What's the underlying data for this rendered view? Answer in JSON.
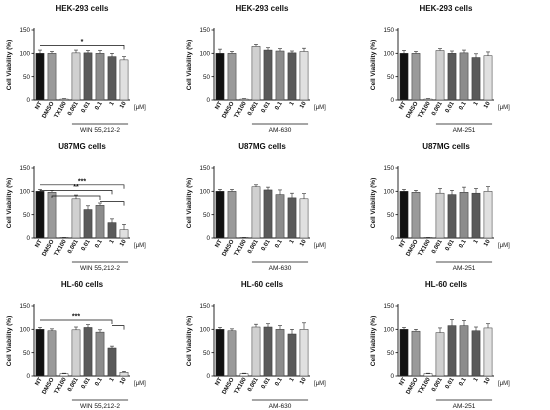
{
  "figure": {
    "unit_label": "[μM]"
  },
  "chart_data": [
    {
      "type": "bar",
      "title": "HEK-293 cells",
      "ylabel": "Cell Viability (%)",
      "ylim": [
        0,
        150
      ],
      "yticks": [
        0,
        50,
        100,
        150
      ],
      "categories": [
        "NT",
        "DMSO",
        "TX100",
        "0.001",
        "0.01",
        "0.1",
        "1",
        "10"
      ],
      "values": [
        100,
        100,
        2,
        101,
        101,
        100,
        93,
        86
      ],
      "errors": [
        7,
        4,
        1,
        6,
        5,
        6,
        7,
        7
      ],
      "treatment": "WIN 55,212-2",
      "unit": "[μM]",
      "significance": [
        {
          "from": 0,
          "to": 7,
          "label": "*"
        }
      ]
    },
    {
      "type": "bar",
      "title": "HEK-293 cells",
      "ylabel": "Cell Viability (%)",
      "ylim": [
        0,
        150
      ],
      "yticks": [
        0,
        50,
        100,
        150
      ],
      "categories": [
        "NT",
        "DMSO",
        "TX100",
        "0.001",
        "0.01",
        "0.1",
        "1",
        "10"
      ],
      "values": [
        100,
        100,
        2,
        115,
        107,
        105,
        101,
        104
      ],
      "errors": [
        9,
        4,
        1,
        4,
        5,
        5,
        4,
        7
      ],
      "treatment": "AM-630",
      "unit": "[μM]",
      "significance": []
    },
    {
      "type": "bar",
      "title": "HEK-293 cells",
      "ylabel": "Cell Viability (%)",
      "ylim": [
        0,
        150
      ],
      "yticks": [
        0,
        50,
        100,
        150
      ],
      "categories": [
        "NT",
        "DMSO",
        "TX100",
        "0.001",
        "0.01",
        "0.1",
        "1",
        "10"
      ],
      "values": [
        100,
        100,
        2,
        106,
        100,
        101,
        91,
        95
      ],
      "errors": [
        6,
        4,
        1,
        4,
        5,
        6,
        8,
        8
      ],
      "treatment": "AM-251",
      "unit": "[μM]",
      "significance": []
    },
    {
      "type": "bar",
      "title": "U87MG cells",
      "ylabel": "Cell Viability (%)",
      "ylim": [
        0,
        150
      ],
      "yticks": [
        0,
        50,
        100,
        150
      ],
      "categories": [
        "NT",
        "DMSO",
        "TX100",
        "0.001",
        "0.01",
        "0.1",
        "1",
        "10"
      ],
      "values": [
        100,
        98,
        0,
        84,
        61,
        70,
        33,
        18
      ],
      "errors": [
        4,
        4,
        1,
        8,
        8,
        5,
        8,
        11
      ],
      "treatment": "WIN 55,212-2",
      "unit": "[μM]",
      "significance": [
        {
          "from": 0,
          "to": 7,
          "label": "***"
        },
        {
          "from": 0,
          "to": 6,
          "label": "**"
        },
        {
          "from": 1,
          "to": 5,
          "label": "",
          "drop": 4
        },
        {
          "from": 5,
          "to": 7,
          "label": ""
        }
      ]
    },
    {
      "type": "bar",
      "title": "U87MG cells",
      "ylabel": "Cell Viability (%)",
      "ylim": [
        0,
        150
      ],
      "yticks": [
        0,
        50,
        100,
        150
      ],
      "categories": [
        "NT",
        "DMSO",
        "TX100",
        "0.001",
        "0.01",
        "0.1",
        "1",
        "10"
      ],
      "values": [
        100,
        100,
        0,
        110,
        103,
        93,
        86,
        84
      ],
      "errors": [
        4,
        4,
        1,
        4,
        6,
        10,
        10,
        11
      ],
      "treatment": "AM-630",
      "unit": "[μM]",
      "significance": []
    },
    {
      "type": "bar",
      "title": "U87MG cells",
      "ylabel": "Cell Viability (%)",
      "ylim": [
        0,
        150
      ],
      "yticks": [
        0,
        50,
        100,
        150
      ],
      "categories": [
        "NT",
        "DMSO",
        "TX100",
        "0.001",
        "0.01",
        "0.1",
        "1",
        "10"
      ],
      "values": [
        100,
        98,
        0,
        96,
        93,
        98,
        96,
        100
      ],
      "errors": [
        4,
        4,
        1,
        10,
        9,
        11,
        10,
        10
      ],
      "treatment": "AM-251",
      "unit": "[μM]",
      "significance": []
    },
    {
      "type": "bar",
      "title": "HL-60 cells",
      "ylabel": "Cell Viability (%)",
      "ylim": [
        0,
        150
      ],
      "yticks": [
        0,
        50,
        100,
        150
      ],
      "categories": [
        "NT",
        "DMSO",
        "TX100",
        "0.001",
        "0.01",
        "0.1",
        "1",
        "10"
      ],
      "values": [
        100,
        97,
        5,
        99,
        104,
        94,
        60,
        8
      ],
      "errors": [
        4,
        4,
        1,
        6,
        6,
        5,
        4,
        2
      ],
      "treatment": "WIN 55,212-2",
      "unit": "[μM]",
      "significance": [
        {
          "from": 0,
          "to": 6,
          "label": "***"
        },
        {
          "from": 6,
          "to": 7,
          "label": ""
        }
      ]
    },
    {
      "type": "bar",
      "title": "HL-60 cells",
      "ylabel": "Cell Viability (%)",
      "ylim": [
        0,
        150
      ],
      "yticks": [
        0,
        50,
        100,
        150
      ],
      "categories": [
        "NT",
        "DMSO",
        "TX100",
        "0.001",
        "0.01",
        "0.1",
        "1",
        "10"
      ],
      "values": [
        100,
        97,
        5,
        105,
        105,
        100,
        90,
        100
      ],
      "errors": [
        4,
        4,
        1,
        6,
        7,
        8,
        10,
        14
      ],
      "treatment": "AM-630",
      "unit": "[μM]",
      "significance": []
    },
    {
      "type": "bar",
      "title": "HL-60 cells",
      "ylabel": "Cell Viability (%)",
      "ylim": [
        0,
        150
      ],
      "yticks": [
        0,
        50,
        100,
        150
      ],
      "categories": [
        "NT",
        "DMSO",
        "TX100",
        "0.001",
        "0.01",
        "0.1",
        "1",
        "10"
      ],
      "values": [
        100,
        96,
        5,
        93,
        108,
        108,
        97,
        103
      ],
      "errors": [
        4,
        4,
        1,
        10,
        13,
        11,
        8,
        9
      ],
      "treatment": "AM-251",
      "unit": "[μM]",
      "significance": []
    }
  ],
  "colors": {
    "bars": [
      "#111111",
      "#9a9a9a",
      "#ffffff",
      "#d0d0d0",
      "#5a5a5a",
      "#8c8c8c",
      "#5a5a5a",
      "#e0e0e0"
    ],
    "outline": "#333333",
    "axis": "#111111"
  }
}
